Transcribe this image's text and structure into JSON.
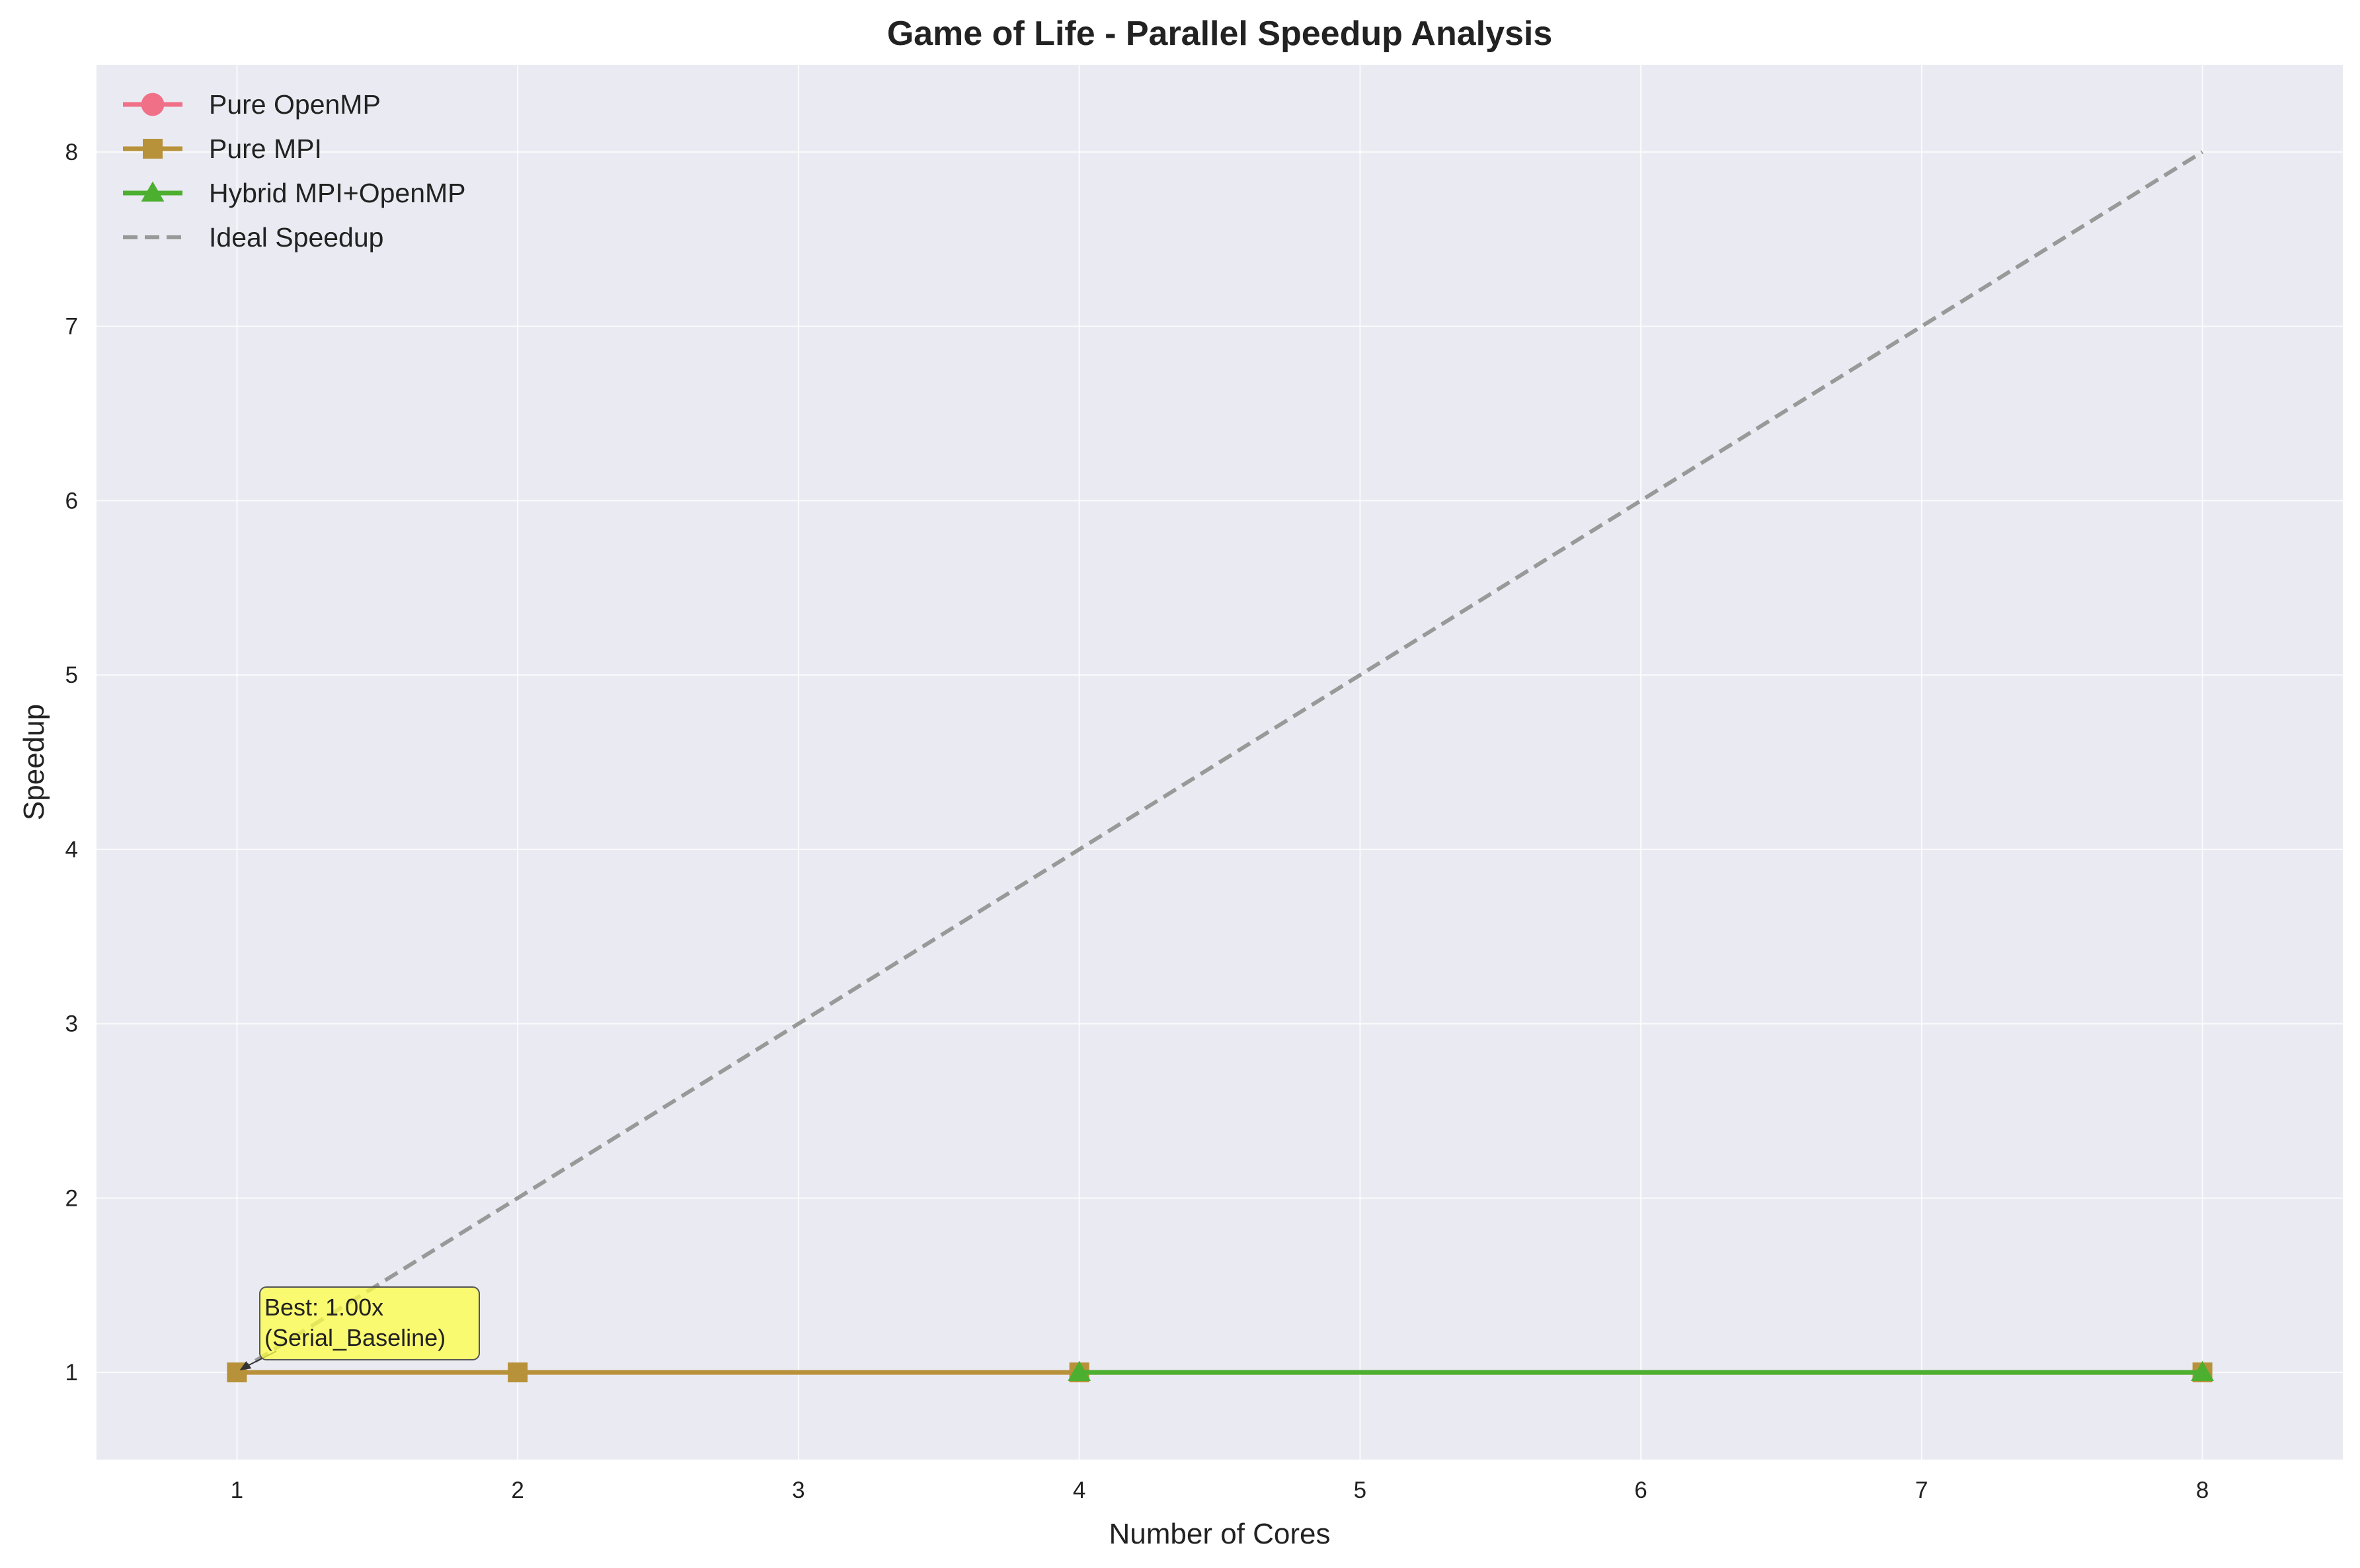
{
  "chart_data": {
    "type": "line",
    "title": "Game of Life - Parallel Speedup Analysis",
    "xlabel": "Number of Cores",
    "ylabel": "Speedup",
    "xlim": [
      0.5,
      8.5
    ],
    "ylim": [
      0.5,
      8.5
    ],
    "xticks": [
      1,
      2,
      3,
      4,
      5,
      6,
      7,
      8
    ],
    "yticks": [
      1,
      2,
      3,
      4,
      5,
      6,
      7,
      8
    ],
    "grid": true,
    "legend_position": "top-left",
    "series": [
      {
        "name": "Pure OpenMP",
        "color": "#f07088",
        "marker": "circle",
        "style": "solid",
        "x": [],
        "y": []
      },
      {
        "name": "Pure MPI",
        "color": "#b8923a",
        "marker": "square",
        "style": "solid",
        "x": [
          1,
          2,
          4,
          8
        ],
        "y": [
          1.0,
          1.0,
          1.0,
          1.0
        ]
      },
      {
        "name": "Hybrid MPI+OpenMP",
        "color": "#4caf30",
        "marker": "triangle",
        "style": "solid",
        "x": [
          4,
          8
        ],
        "y": [
          1.0,
          1.0
        ]
      },
      {
        "name": "Ideal Speedup",
        "color": "#999999",
        "marker": "none",
        "style": "dashed",
        "x": [
          1,
          8
        ],
        "y": [
          1,
          8
        ]
      }
    ],
    "annotation": {
      "line1": "Best: 1.00x",
      "line2": "(Serial_Baseline)",
      "x": 1,
      "y": 1.0,
      "background": "#ffff44"
    },
    "colors": {
      "plot_background": "#eaeaf2",
      "grid": "#ffffff"
    }
  }
}
